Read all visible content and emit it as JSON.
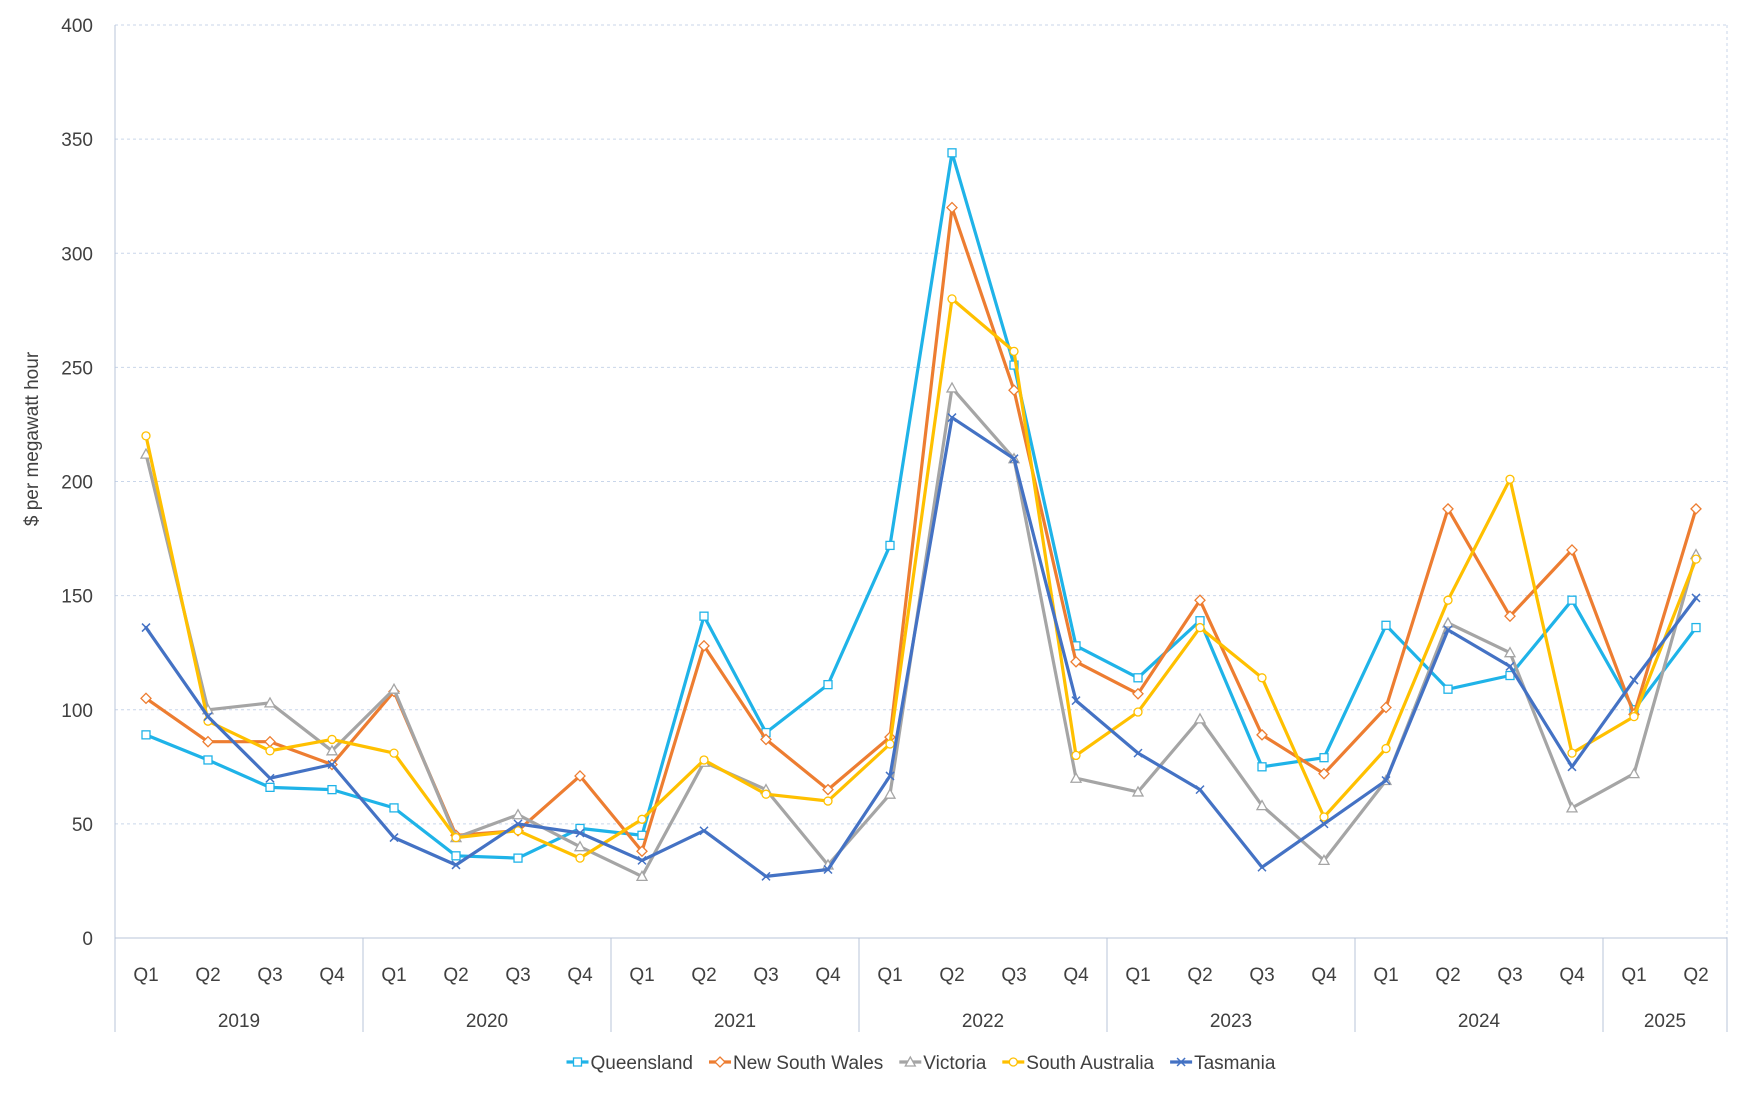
{
  "chart_data": {
    "type": "line",
    "ylabel": "$ per megawatt hour",
    "xlabel": "",
    "ylim": [
      0,
      400
    ],
    "yticks": [
      0,
      50,
      100,
      150,
      200,
      250,
      300,
      350,
      400
    ],
    "grid": true,
    "legend_position": "bottom",
    "years": [
      {
        "label": "2019",
        "quarters": [
          "Q1",
          "Q2",
          "Q3",
          "Q4"
        ]
      },
      {
        "label": "2020",
        "quarters": [
          "Q1",
          "Q2",
          "Q3",
          "Q4"
        ]
      },
      {
        "label": "2021",
        "quarters": [
          "Q1",
          "Q2",
          "Q3",
          "Q4"
        ]
      },
      {
        "label": "2022",
        "quarters": [
          "Q1",
          "Q2",
          "Q3",
          "Q4"
        ]
      },
      {
        "label": "2023",
        "quarters": [
          "Q1",
          "Q2",
          "Q3",
          "Q4"
        ]
      },
      {
        "label": "2024",
        "quarters": [
          "Q1",
          "Q2",
          "Q3",
          "Q4"
        ]
      },
      {
        "label": "2025",
        "quarters": [
          "Q1",
          "Q2"
        ]
      }
    ],
    "series": [
      {
        "name": "Queensland",
        "color": "#1fb3e8",
        "marker": "square",
        "values": [
          89,
          78,
          66,
          65,
          57,
          36,
          35,
          48,
          45,
          141,
          90,
          111,
          172,
          344,
          251,
          128,
          114,
          139,
          75,
          79,
          137,
          109,
          115,
          148,
          100,
          136
        ]
      },
      {
        "name": "New South Wales",
        "color": "#ed7d31",
        "marker": "diamond",
        "values": [
          105,
          86,
          86,
          76,
          108,
          45,
          47,
          71,
          38,
          128,
          87,
          65,
          88,
          320,
          240,
          121,
          107,
          148,
          89,
          72,
          101,
          188,
          141,
          170,
          98,
          188
        ]
      },
      {
        "name": "Victoria",
        "color": "#a5a5a5",
        "marker": "triangle",
        "values": [
          212,
          100,
          103,
          82,
          109,
          44,
          54,
          40,
          27,
          77,
          65,
          32,
          63,
          241,
          210,
          70,
          64,
          96,
          58,
          34,
          69,
          138,
          125,
          57,
          72,
          168
        ]
      },
      {
        "name": "South Australia",
        "color": "#ffc000",
        "marker": "circle",
        "values": [
          220,
          95,
          82,
          87,
          81,
          44,
          47,
          35,
          52,
          78,
          63,
          60,
          85,
          280,
          257,
          80,
          99,
          136,
          114,
          53,
          83,
          148,
          201,
          81,
          97,
          166
        ]
      },
      {
        "name": "Tasmania",
        "color": "#4472c4",
        "marker": "x",
        "values": [
          136,
          97,
          70,
          76,
          44,
          32,
          50,
          46,
          34,
          47,
          27,
          30,
          71,
          228,
          210,
          104,
          81,
          65,
          31,
          50,
          69,
          135,
          119,
          75,
          113,
          149
        ]
      }
    ]
  }
}
